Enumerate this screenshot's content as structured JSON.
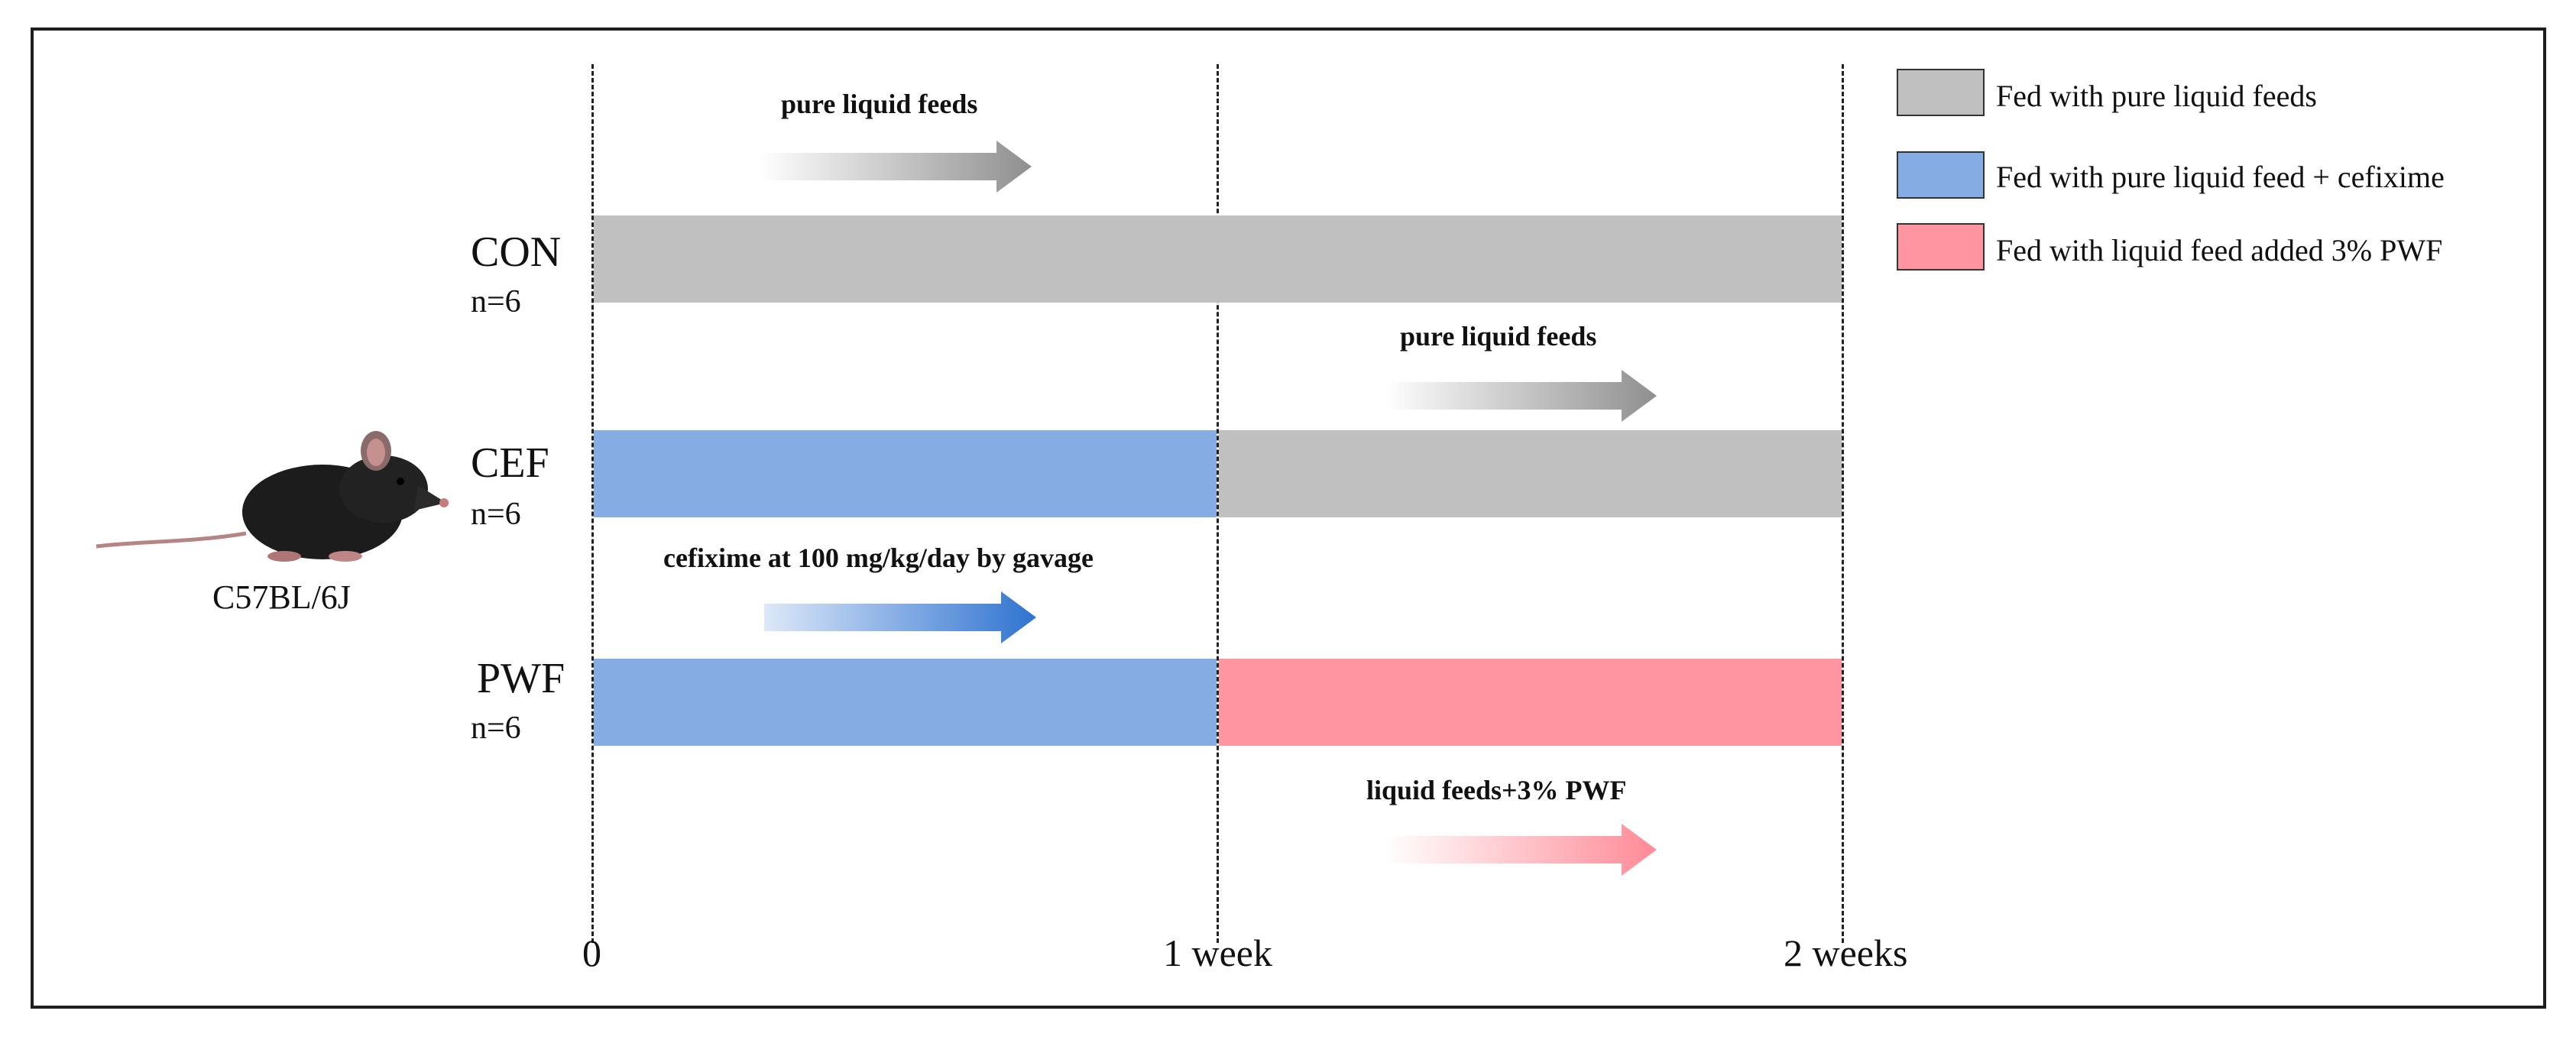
{
  "groups": [
    {
      "name": "CON",
      "n": "n=6"
    },
    {
      "name": "CEF",
      "n": "n=6"
    },
    {
      "name": "PWF",
      "n": "n=6"
    }
  ],
  "timeline": {
    "ticks": [
      "0",
      "1 week",
      "2 weeks"
    ]
  },
  "annotations": {
    "con_phase": "pure liquid feeds",
    "cef_phase2": "pure liquid feeds",
    "cefixime": "cefixime at 100 mg/kg/day by gavage",
    "pwf_phase2": "liquid feeds+3% PWF"
  },
  "legend": [
    {
      "label": "Fed with pure liquid feeds",
      "color": "#c0c0c0"
    },
    {
      "label": "Fed with pure liquid feed + cefixime",
      "color": "#86ade3"
    },
    {
      "label": "Fed with liquid feed added 3% PWF",
      "color": "#ff95a1"
    }
  ],
  "subject": {
    "strain": "C57BL/6J",
    "icon": "mouse-icon"
  }
}
